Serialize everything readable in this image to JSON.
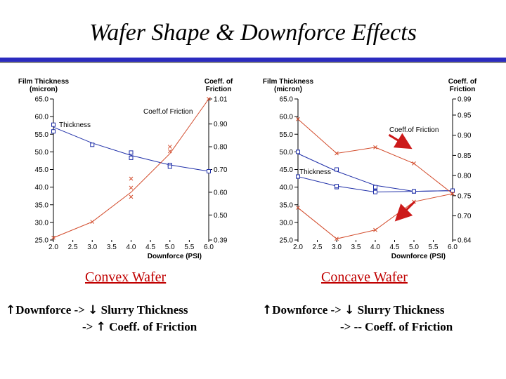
{
  "slide": {
    "title": "Wafer Shape & Downforce Effects",
    "accent_color": "#2b2bbf"
  },
  "left": {
    "caption": "Convex Wafer",
    "line1": "Downforce -> ",
    "line1b": " Slurry Thickness",
    "line2": "-> ",
    "line2b": " Coeff. of Friction",
    "arrow_up": "↑",
    "arrow_down": "↓"
  },
  "right": {
    "caption": "Concave Wafer",
    "line1": "Downforce -> ",
    "line1b": " Slurry Thickness",
    "line2": "-> -- Coeff. of Friction",
    "arrow_up": "↑",
    "arrow_down": "↓"
  },
  "chart_data": [
    {
      "type": "line",
      "xlabel": "Downforce (PSI)",
      "ylabel": "Film Thickness (micron)",
      "y2label": "Coeff. of Friction",
      "xlim": [
        2.0,
        6.0
      ],
      "ylim": [
        25.0,
        65.0
      ],
      "y2lim": [
        0.39,
        1.01
      ],
      "x_ticks": [
        "2.0",
        "2.5",
        "3.0",
        "3.5",
        "4.0",
        "4.5",
        "5.0",
        "5.5",
        "6.0"
      ],
      "y_ticks": [
        "65.0",
        "60.0",
        "55.0",
        "50.0",
        "45.0",
        "40.0",
        "35.0",
        "30.0",
        "25.0"
      ],
      "y2_ticks": [
        "1.01",
        "0.90",
        "0.80",
        "0.70",
        "0.60",
        "0.50",
        "0.39"
      ],
      "annotations": [
        "Thickness",
        "Coeff.of Friction"
      ],
      "series": [
        {
          "name": "Thickness",
          "axis": "left",
          "color": "#1f2fa8",
          "marker": "square",
          "x": [
            2.0,
            2.0,
            3.0,
            4.0,
            4.0,
            5.0,
            5.0,
            6.0
          ],
          "y": [
            57.7,
            55.8,
            52.0,
            49.8,
            48.3,
            46.3,
            45.8,
            44.5
          ],
          "curve_x": [
            2.0,
            3.0,
            4.0,
            5.0,
            6.0
          ],
          "curve_y": [
            57.0,
            52.5,
            49.0,
            46.3,
            44.5
          ]
        },
        {
          "name": "Coeff.of Friction",
          "axis": "right",
          "color": "#d24a2a",
          "marker": "x",
          "x": [
            2.0,
            3.0,
            4.0,
            4.0,
            4.0,
            5.0,
            5.0,
            6.0
          ],
          "y": [
            0.4,
            0.47,
            0.58,
            0.62,
            0.66,
            0.78,
            0.8,
            1.01
          ],
          "curve_x": [
            2.0,
            3.0,
            4.0,
            5.0,
            6.0
          ],
          "curve_y": [
            0.4,
            0.47,
            0.6,
            0.77,
            1.01
          ]
        }
      ]
    },
    {
      "type": "line",
      "xlabel": "Downforce (PSI)",
      "ylabel": "Film Thickness (micron)",
      "y2label": "Coeff. of Friction",
      "xlim": [
        2.0,
        6.0
      ],
      "ylim": [
        25.0,
        65.0
      ],
      "y2lim": [
        0.64,
        0.99
      ],
      "x_ticks": [
        "2.0",
        "2.5",
        "3.0",
        "3.5",
        "4.0",
        "4.5",
        "5.0",
        "5.5",
        "6.0"
      ],
      "y_ticks": [
        "65.0",
        "60.0",
        "55.0",
        "50.0",
        "45.0",
        "40.0",
        "35.0",
        "30.0",
        "25.0"
      ],
      "y2_ticks": [
        "0.99",
        "0.95",
        "0.90",
        "0.85",
        "0.80",
        "0.75",
        "0.70",
        "0.64"
      ],
      "annotations": [
        "Thickness",
        "Coeff.of Friction"
      ],
      "series": [
        {
          "name": "Thickness",
          "axis": "left",
          "color": "#1f2fa8",
          "marker": "square",
          "x": [
            2.0,
            2.0,
            3.0,
            3.0,
            4.0,
            4.0,
            5.0,
            5.0,
            6.0
          ],
          "y": [
            50.0,
            43.0,
            45.0,
            40.0,
            40.0,
            38.8,
            38.8,
            38.8,
            39.0
          ],
          "curve_x": [
            2.0,
            3.0,
            4.0,
            5.0,
            6.0
          ],
          "curve_y": [
            49.5,
            44.5,
            40.5,
            38.8,
            39.0
          ]
        },
        {
          "name": "Thickness (lower)",
          "axis": "left",
          "color": "#1f2fa8",
          "marker": "square",
          "x": [
            2.0,
            3.0,
            4.0,
            5.0,
            6.0
          ],
          "y": [
            43.0,
            40.3,
            38.6,
            38.8,
            39.0
          ],
          "curve_x": [
            2.0,
            3.0,
            4.0,
            5.0,
            6.0
          ],
          "curve_y": [
            43.0,
            40.3,
            38.6,
            38.8,
            39.0
          ]
        },
        {
          "name": "Coeff.of Friction",
          "axis": "right",
          "color": "#d24a2a",
          "marker": "x",
          "x": [
            2.0,
            3.0,
            4.0,
            5.0,
            6.0
          ],
          "y": [
            0.94,
            0.855,
            0.87,
            0.83,
            0.755
          ],
          "curve_x": [
            2.0,
            3.0,
            4.0,
            5.0,
            6.0
          ],
          "curve_y": [
            0.94,
            0.855,
            0.87,
            0.83,
            0.755
          ]
        },
        {
          "name": "Coeff.of Friction (lower)",
          "axis": "right",
          "color": "#d24a2a",
          "marker": "x",
          "x": [
            2.0,
            3.0,
            4.0,
            5.0,
            6.0
          ],
          "y": [
            0.72,
            0.643,
            0.665,
            0.735,
            0.755
          ],
          "curve_x": [
            2.0,
            3.0,
            4.0,
            5.0,
            6.0
          ],
          "curve_y": [
            0.72,
            0.643,
            0.665,
            0.735,
            0.755
          ]
        }
      ],
      "pointer_arrows": 2,
      "pointer_color": "#cc1a1a"
    }
  ]
}
